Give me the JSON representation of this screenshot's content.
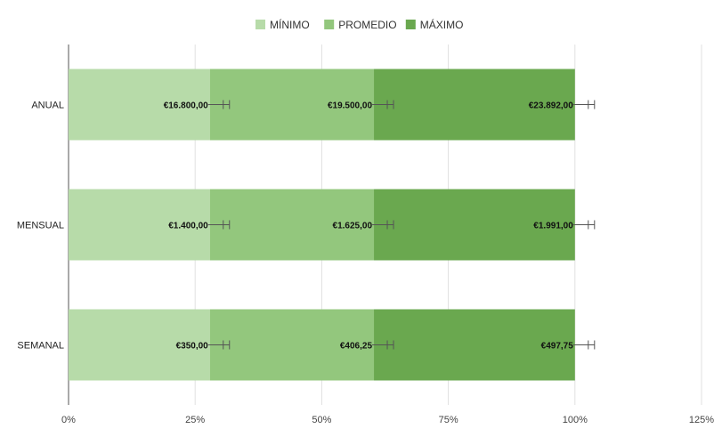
{
  "chart_data": {
    "type": "bar",
    "orientation": "horizontal",
    "stacking": "percent",
    "title": "",
    "xlabel": "",
    "ylabel": "",
    "legend_position": "top",
    "grid": true,
    "xlim": [
      0,
      125
    ],
    "x_ticks": [
      "0%",
      "25%",
      "50%",
      "75%",
      "100%",
      "125%"
    ],
    "categories": [
      "ANUAL",
      "MENSUAL",
      "SEMANAL"
    ],
    "series": [
      {
        "name": "MÍNIMO",
        "color": "#b7dba9",
        "values": [
          16800,
          1400,
          350
        ],
        "labels": [
          "€16.800,00",
          "€1.400,00",
          "€350,00"
        ]
      },
      {
        "name": "PROMEDIO",
        "color": "#93c77d",
        "values": [
          19500,
          1625,
          406.25
        ],
        "labels": [
          "€19.500,00",
          "€1.625,00",
          "€406,25"
        ]
      },
      {
        "name": "MÁXIMO",
        "color": "#6aa84f",
        "values": [
          23892,
          1991,
          497.75
        ],
        "labels": [
          "€23.892,00",
          "€1.991,00",
          "€497,75"
        ]
      }
    ],
    "error_bars": true
  }
}
